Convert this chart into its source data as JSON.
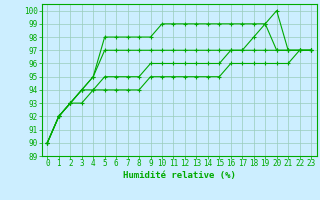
{
  "background_color": "#cceeff",
  "grid_color": "#99ccbb",
  "line_color": "#00aa00",
  "marker_color": "#00aa00",
  "xlabel": "Humidité relative (%)",
  "xlabel_color": "#00aa00",
  "tick_color": "#00aa00",
  "xlim": [
    -0.5,
    23.5
  ],
  "ylim": [
    89,
    100.5
  ],
  "yticks": [
    89,
    90,
    91,
    92,
    93,
    94,
    95,
    96,
    97,
    98,
    99,
    100
  ],
  "xticks": [
    0,
    1,
    2,
    3,
    4,
    5,
    6,
    7,
    8,
    9,
    10,
    11,
    12,
    13,
    14,
    15,
    16,
    17,
    18,
    19,
    20,
    21,
    22,
    23
  ],
  "series": [
    [
      90,
      92,
      93,
      94,
      95,
      98,
      98,
      98,
      98,
      98,
      99,
      99,
      99,
      99,
      99,
      99,
      99,
      99,
      99,
      99,
      100,
      97,
      97,
      97
    ],
    [
      90,
      92,
      93,
      94,
      95,
      97,
      97,
      97,
      97,
      97,
      97,
      97,
      97,
      97,
      97,
      97,
      97,
      97,
      98,
      99,
      97,
      97,
      97,
      97
    ],
    [
      90,
      92,
      93,
      94,
      94,
      95,
      95,
      95,
      95,
      96,
      96,
      96,
      96,
      96,
      96,
      96,
      97,
      97,
      97,
      97,
      97,
      97,
      97,
      97
    ],
    [
      90,
      92,
      93,
      93,
      94,
      94,
      94,
      94,
      94,
      95,
      95,
      95,
      95,
      95,
      95,
      95,
      96,
      96,
      96,
      96,
      96,
      96,
      97,
      97
    ]
  ]
}
